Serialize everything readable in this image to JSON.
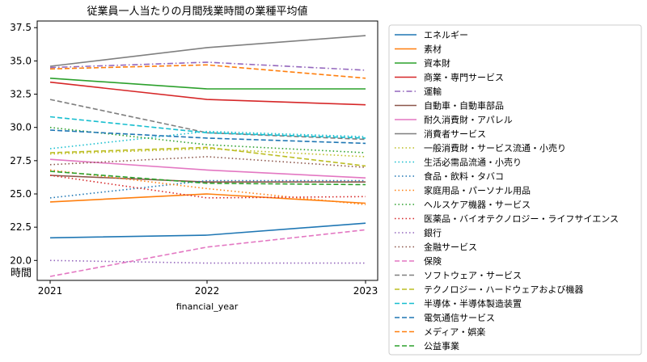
{
  "chart_data": {
    "type": "line",
    "title": "従業員一人当たりの月間残業時間の業種平均値",
    "xlabel": "financial_year",
    "ylabel": "時間",
    "x": [
      2021,
      2022,
      2023
    ],
    "x_tick_labels": [
      "2021",
      "2022",
      "2023"
    ],
    "ylim": [
      18.5,
      38.0
    ],
    "y_ticks": [
      20.0,
      22.5,
      25.0,
      27.5,
      30.0,
      32.5,
      35.0,
      37.5
    ],
    "y_tick_labels": [
      "20.0",
      "22.5",
      "25.0",
      "27.5",
      "30.0",
      "32.5",
      "35.0",
      "37.5"
    ],
    "legend_position": "outside-right",
    "grid": false,
    "series": [
      {
        "name": "エネルギー",
        "color": "#1f77b4",
        "style": "solid",
        "values": [
          21.7,
          21.9,
          22.8
        ]
      },
      {
        "name": "素材",
        "color": "#ff7f0e",
        "style": "solid",
        "values": [
          24.4,
          25.0,
          24.3
        ]
      },
      {
        "name": "資本財",
        "color": "#2ca02c",
        "style": "solid",
        "values": [
          33.7,
          32.9,
          32.9
        ]
      },
      {
        "name": "商業・専門サービス",
        "color": "#d62728",
        "style": "solid",
        "values": [
          33.4,
          32.1,
          31.7
        ]
      },
      {
        "name": "運輸",
        "color": "#9467bd",
        "style": "dashdot",
        "values": [
          34.5,
          34.9,
          34.3
        ]
      },
      {
        "name": "自動車・自動車部品",
        "color": "#8c564b",
        "style": "solid",
        "values": [
          26.4,
          25.9,
          25.9
        ]
      },
      {
        "name": "耐久消費財・アパレル",
        "color": "#e377c2",
        "style": "solid",
        "values": [
          27.6,
          26.8,
          26.2
        ]
      },
      {
        "name": "消費者サービス",
        "color": "#7f7f7f",
        "style": "solid",
        "values": [
          34.6,
          36.0,
          36.9
        ]
      },
      {
        "name": "一般消費財・サービス流通・小売り",
        "color": "#bcbd22",
        "style": "dotted",
        "values": [
          28.0,
          28.4,
          27.8
        ]
      },
      {
        "name": "生活必需品流通・小売り",
        "color": "#17becf",
        "style": "dotted",
        "values": [
          28.4,
          29.7,
          29.3
        ]
      },
      {
        "name": "食品・飲料・タバコ",
        "color": "#1f77b4",
        "style": "dotted",
        "values": [
          24.7,
          26.0,
          26.0
        ]
      },
      {
        "name": "家庭用品・パーソナル用品",
        "color": "#ff7f0e",
        "style": "dotted",
        "values": [
          26.8,
          25.4,
          24.2
        ]
      },
      {
        "name": "ヘルスケア機器・サービス",
        "color": "#2ca02c",
        "style": "dotted",
        "values": [
          30.0,
          28.7,
          28.1
        ]
      },
      {
        "name": "医薬品・バイオテクノロジー・ライフサイエンス",
        "color": "#d62728",
        "style": "dotted",
        "values": [
          26.4,
          24.7,
          24.8
        ]
      },
      {
        "name": "銀行",
        "color": "#9467bd",
        "style": "dotted",
        "values": [
          20.0,
          19.8,
          19.8
        ]
      },
      {
        "name": "金融サービス",
        "color": "#8c564b",
        "style": "dotted",
        "values": [
          27.2,
          27.8,
          27.0
        ]
      },
      {
        "name": "保険",
        "color": "#e377c2",
        "style": "dashed",
        "values": [
          18.8,
          21.0,
          22.3
        ]
      },
      {
        "name": "ソフトウェア・サービス",
        "color": "#7f7f7f",
        "style": "dashed",
        "values": [
          32.1,
          29.6,
          29.1
        ]
      },
      {
        "name": "テクノロジー・ハードウェアおよび機器",
        "color": "#bcbd22",
        "style": "dashed",
        "values": [
          28.1,
          28.5,
          27.1
        ]
      },
      {
        "name": "半導体・半導体製造装置",
        "color": "#17becf",
        "style": "dashed",
        "values": [
          30.8,
          29.6,
          29.2
        ]
      },
      {
        "name": "電気通信サービス",
        "color": "#1f77b4",
        "style": "dashed",
        "values": [
          29.8,
          29.2,
          28.8
        ]
      },
      {
        "name": "メディア・娯楽",
        "color": "#ff7f0e",
        "style": "dashed",
        "values": [
          34.4,
          34.7,
          33.7
        ]
      },
      {
        "name": "公益事業",
        "color": "#2ca02c",
        "style": "dashed",
        "values": [
          26.7,
          25.8,
          25.7
        ]
      }
    ]
  }
}
